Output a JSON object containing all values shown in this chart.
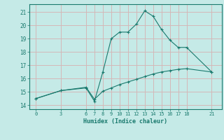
{
  "xlabel": "Humidex (Indice chaleur)",
  "background_color": "#c5eae7",
  "grid_color": "#d4b8b8",
  "line_color": "#1a7a6e",
  "x_ticks": [
    0,
    3,
    6,
    7,
    8,
    9,
    10,
    11,
    12,
    13,
    14,
    15,
    16,
    17,
    18,
    21
  ],
  "y_ticks": [
    14,
    15,
    16,
    17,
    18,
    19,
    20,
    21
  ],
  "ylim": [
    13.7,
    21.6
  ],
  "xlim": [
    -0.8,
    22.2
  ],
  "line1_x": [
    0,
    3,
    6,
    7,
    8,
    9,
    10,
    11,
    12,
    13,
    14,
    15,
    16,
    17,
    18,
    21
  ],
  "line1_y": [
    14.5,
    15.1,
    15.3,
    14.3,
    16.5,
    19.0,
    19.5,
    19.5,
    20.1,
    21.1,
    20.7,
    19.7,
    18.9,
    18.35,
    18.35,
    16.5
  ],
  "line2_x": [
    0,
    3,
    6,
    7,
    8,
    9,
    10,
    11,
    12,
    13,
    14,
    15,
    16,
    17,
    18,
    21
  ],
  "line2_y": [
    14.5,
    15.1,
    15.35,
    14.45,
    15.05,
    15.3,
    15.55,
    15.75,
    15.95,
    16.15,
    16.35,
    16.5,
    16.6,
    16.7,
    16.75,
    16.5
  ]
}
